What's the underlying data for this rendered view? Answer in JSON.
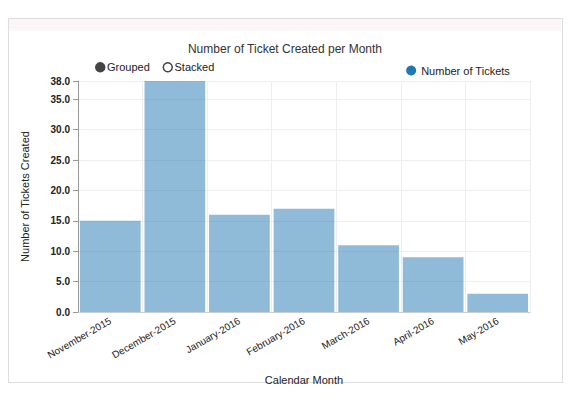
{
  "chart_data": {
    "type": "bar",
    "title": "Number of Ticket Created per Month",
    "x_label": "Calendar Month",
    "y_label": "Number of Tickets Created",
    "annotations": [
      "Grouped",
      "Stacked"
    ],
    "categories": [
      "November-2015",
      "December-2015",
      "January-2016",
      "February-2016",
      "March-2016",
      "April-2016",
      "May-2016"
    ],
    "series": [
      {
        "name": "Number of Tickets",
        "color": "#1f77b4",
        "values": [
          15,
          38,
          16,
          17,
          11,
          9,
          3
        ]
      }
    ],
    "ylim": [
      0,
      38
    ],
    "yticks": [
      {
        "value": 0,
        "label": "0.0"
      },
      {
        "value": 5,
        "label": "5.0"
      },
      {
        "value": 10,
        "label": "10.0"
      },
      {
        "value": 15,
        "label": "15.0"
      },
      {
        "value": 20,
        "label": "20.0"
      },
      {
        "value": 25,
        "label": "25.0"
      },
      {
        "value": 30,
        "label": "30.0"
      },
      {
        "value": 35,
        "label": "35.0"
      },
      {
        "value": 38,
        "label": "38.0"
      }
    ],
    "grid": true,
    "legend": "top-right"
  }
}
